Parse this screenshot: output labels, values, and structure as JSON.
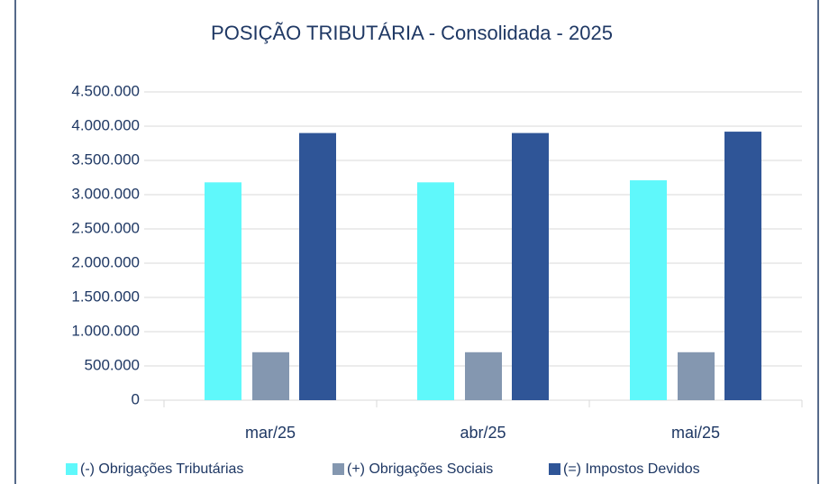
{
  "chart_data": {
    "type": "bar",
    "title": "POSIÇÃO TRIBUTÁRIA - Consolidada -  2025",
    "categories": [
      "mar/25",
      "abr/25",
      "mai/25"
    ],
    "series": [
      {
        "name": "(-) Obrigações Tributárias",
        "color": "#5ff8fb",
        "values": [
          3180000,
          3180000,
          3210000
        ]
      },
      {
        "name": "(+) Obrigações Sociais",
        "color": "#8497b0",
        "values": [
          700000,
          700000,
          700000
        ]
      },
      {
        "name": "(=) Impostos Devidos",
        "color": "#2f5597",
        "values": [
          3900000,
          3900000,
          3920000
        ]
      }
    ],
    "ylim": [
      0,
      4500000
    ],
    "yticks": [
      0,
      {
        "value": 500000,
        "label": "500.000"
      },
      {
        "value": 1000000,
        "label": "1.000.000"
      },
      {
        "value": 1500000,
        "label": "1.500.000"
      },
      {
        "value": 2000000,
        "label": "2.000.000"
      },
      {
        "value": 2500000,
        "label": "2.500.000"
      },
      {
        "value": 3000000,
        "label": "3.000.000"
      },
      {
        "value": 3500000,
        "label": "3.500.000"
      },
      {
        "value": 4000000,
        "label": "4.000.000"
      },
      {
        "value": 4500000,
        "label": "4.500.000"
      }
    ],
    "grid": true,
    "legend": "bottom"
  }
}
